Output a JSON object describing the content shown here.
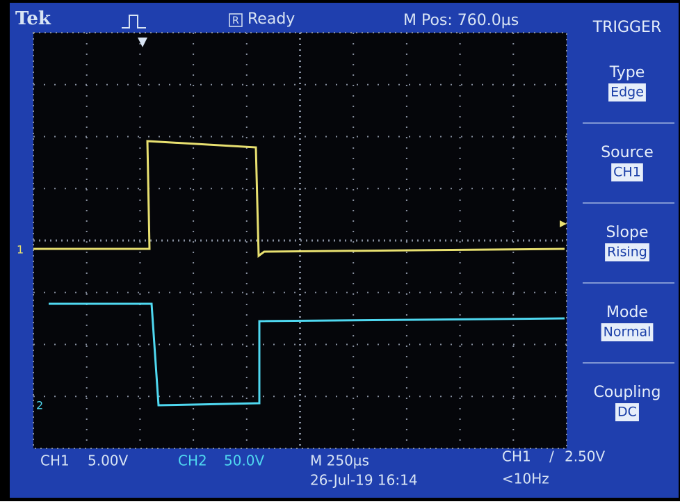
{
  "header": {
    "brand": "Tek",
    "status_icon": "R",
    "status": "Ready",
    "position": "M Pos: 760.0µs"
  },
  "channels": {
    "ch1_marker": "1",
    "ch2_marker": "2"
  },
  "menu": {
    "title": "TRIGGER",
    "items": [
      {
        "label": "Type",
        "value": "Edge"
      },
      {
        "label": "Source",
        "value": "CH1"
      },
      {
        "label": "Slope",
        "value": "Rising"
      },
      {
        "label": "Mode",
        "value": "Normal"
      },
      {
        "label": "Coupling",
        "value": "DC"
      }
    ]
  },
  "footer": {
    "ch1": "CH1",
    "ch1_scale": "5.00V",
    "ch2": "CH2",
    "ch2_scale": "50.0V",
    "timebase": "M 250µs",
    "datetime": "26-Jul-19 16:14",
    "trigger_source": "CH1",
    "trigger_slope": "/",
    "trigger_level": "2.50V",
    "frequency": "<10Hz"
  }
}
